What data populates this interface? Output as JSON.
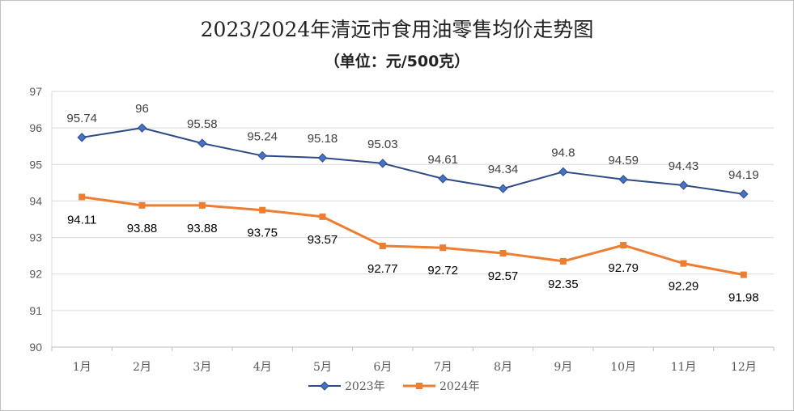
{
  "chart_data": {
    "type": "line",
    "title": "2023/2024年清远市食用油零售均价走势图",
    "subtitle": "（单位：元/500克）",
    "xlabel": "",
    "ylabel": "",
    "categories": [
      "1月",
      "2月",
      "3月",
      "4月",
      "5月",
      "6月",
      "7月",
      "8月",
      "9月",
      "10月",
      "11月",
      "12月"
    ],
    "ylim": [
      90,
      97
    ],
    "yticks": [
      "90",
      "91",
      "92",
      "93",
      "94",
      "95",
      "96",
      "97"
    ],
    "grid": true,
    "legend_position": "bottom",
    "series": [
      {
        "name": "2023年",
        "color": "#2E4A87",
        "marker": "diamond",
        "values": [
          95.74,
          96,
          95.58,
          95.24,
          95.18,
          95.03,
          94.61,
          94.34,
          94.8,
          94.59,
          94.43,
          94.19
        ],
        "labels": [
          "95.74",
          "96",
          "95.58",
          "95.24",
          "95.18",
          "95.03",
          "94.61",
          "94.34",
          "94.8",
          "94.59",
          "94.43",
          "94.19"
        ]
      },
      {
        "name": "2024年",
        "color": "#ED7D31",
        "marker": "square",
        "values": [
          94.11,
          93.88,
          93.88,
          93.75,
          93.57,
          92.77,
          92.72,
          92.57,
          92.35,
          92.79,
          92.29,
          91.98
        ],
        "labels": [
          "94.11",
          "93.88",
          "93.88",
          "93.75",
          "93.57",
          "92.77",
          "92.72",
          "92.57",
          "92.35",
          "92.79",
          "92.29",
          "91.98"
        ]
      }
    ]
  }
}
